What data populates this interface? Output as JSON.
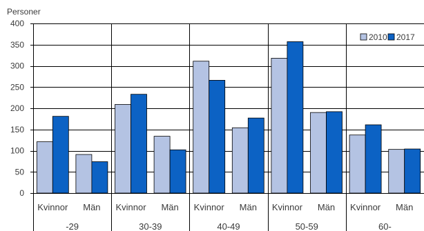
{
  "chart_data": {
    "type": "bar",
    "ylabel": "Personer",
    "ylim": [
      0,
      400
    ],
    "yticks": [
      0,
      50,
      100,
      150,
      200,
      250,
      300,
      350,
      400
    ],
    "grid": true,
    "legend_position": "top-right",
    "age_groups": [
      "-29",
      "30-39",
      "40-49",
      "50-59",
      "60-"
    ],
    "categories": [
      "Kvinnor",
      "Män",
      "Kvinnor",
      "Män",
      "Kvinnor",
      "Män",
      "Kvinnor",
      "Män",
      "Kvinnor",
      "Män"
    ],
    "series": [
      {
        "name": "2010",
        "color": "#b4c3e3",
        "values": [
          121,
          91,
          209,
          134,
          311,
          154,
          318,
          190,
          137,
          103
        ]
      },
      {
        "name": "2017",
        "color": "#0c62c4",
        "values": [
          181,
          74,
          233,
          102,
          266,
          177,
          357,
          192,
          161,
          104
        ]
      }
    ]
  }
}
